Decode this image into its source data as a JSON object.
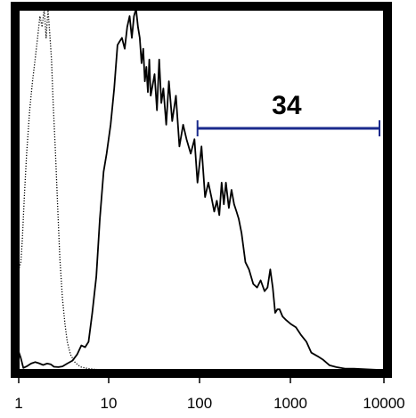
{
  "chart_data": {
    "type": "line",
    "title": "",
    "xlabel": "",
    "ylabel": "",
    "x_scale": "log",
    "xlim": [
      1,
      10000
    ],
    "ylim": [
      0,
      100
    ],
    "x_ticks": [
      1,
      10,
      100,
      1000,
      10000
    ],
    "x_tick_labels": [
      "1",
      "10",
      "100",
      "1000",
      "10000"
    ],
    "grid": false,
    "legend": "none",
    "frame_color": "#000000",
    "series": [
      {
        "style": "dotted",
        "color": "#000000",
        "x": [
          1.0,
          1.08,
          1.12,
          1.18,
          1.25,
          1.35,
          1.45,
          1.55,
          1.65,
          1.75,
          1.85,
          1.95,
          2.05,
          2.15,
          2.25,
          2.35,
          2.45,
          2.6,
          2.75,
          2.9,
          3.1,
          3.3,
          3.5,
          3.8,
          4.2,
          4.6,
          5.0,
          5.5,
          6.0,
          7.0,
          8.0,
          9.0,
          10.0,
          12.0
        ],
        "y": [
          27,
          30,
          36,
          48,
          60,
          72,
          80,
          86,
          92,
          98,
          95,
          100,
          92,
          100,
          93,
          86,
          74,
          60,
          45,
          31,
          20,
          13,
          8,
          4.5,
          2.5,
          1.6,
          1.0,
          0.8,
          0.6,
          0.4,
          0.3,
          0.2,
          0.1,
          0.0
        ]
      },
      {
        "style": "solid",
        "color": "#000000",
        "x": [
          1.0,
          1.08,
          1.15,
          1.25,
          1.4,
          1.55,
          1.7,
          1.9,
          2.1,
          2.3,
          2.5,
          2.8,
          3.1,
          3.5,
          4.0,
          4.5,
          5.0,
          5.5,
          6.0,
          6.6,
          7.3,
          8.0,
          8.8,
          9.5,
          10.5,
          11.5,
          12.5,
          13.2,
          14.0,
          15.0,
          16.0,
          17.0,
          18.0,
          19.0,
          20.0,
          21.0,
          22.0,
          23.0,
          24.0,
          25.0,
          26.0,
          27.0,
          28.0,
          29.0,
          30.0,
          32.0,
          34.0,
          36.0,
          38.0,
          40.0,
          43.0,
          46.0,
          50.0,
          55.0,
          60.0,
          66.0,
          72.0,
          80.0,
          88.0,
          95.0,
          105.0,
          115.0,
          125.0,
          135.0,
          145.0,
          155.0,
          165.0,
          175.0,
          185.0,
          195.0,
          210.0,
          225.0,
          240.0,
          255.0,
          270.0,
          290.0,
          320.0,
          350.0,
          390.0,
          430.0,
          470.0,
          520.0,
          560.0,
          600.0,
          640.0,
          680.0,
          720.0,
          760.0,
          820.0,
          900.0,
          1000.0,
          1150.0,
          1300.0,
          1500.0,
          1700.0,
          2000.0,
          2300.0,
          2700.0,
          3200.0,
          4000.0,
          5000.0,
          7000.0,
          10000.0
        ],
        "y": [
          6,
          3.5,
          0.8,
          1.2,
          2.0,
          2.4,
          2.1,
          1.6,
          2.0,
          1.8,
          1.1,
          1.0,
          1.2,
          2.0,
          2.8,
          4.5,
          7.0,
          6.5,
          8.0,
          16.0,
          26.0,
          42.0,
          55.0,
          60.0,
          68.0,
          78.0,
          90.0,
          91.0,
          92.0,
          89.0,
          95.0,
          98.0,
          92.0,
          98.0,
          100.0,
          95.0,
          92.0,
          85.0,
          89.0,
          80.0,
          84.0,
          77.0,
          86.0,
          76.0,
          78.0,
          82.0,
          72.0,
          86.0,
          74.0,
          78.0,
          68.0,
          80.0,
          69.0,
          76.0,
          62.0,
          68.0,
          64.0,
          60.0,
          64.0,
          52.0,
          62.0,
          48.0,
          52.0,
          48.0,
          44.0,
          47.0,
          43.0,
          52.0,
          46.0,
          52.0,
          45.0,
          50.0,
          46.0,
          44.0,
          42.0,
          38.0,
          30.0,
          28.0,
          24.0,
          23.0,
          25.0,
          22.0,
          23.0,
          28.0,
          23.0,
          16.0,
          17.0,
          17.0,
          15.0,
          14.0,
          13.0,
          12.0,
          10.0,
          8.0,
          5.0,
          4.0,
          3.0,
          1.5,
          1.0,
          0.6,
          0.6,
          0.4,
          0.2
        ]
      }
    ],
    "gate": {
      "x_start": 95,
      "x_end": 10000,
      "y": 67,
      "label": "34",
      "color": "#1a2a8c"
    }
  }
}
